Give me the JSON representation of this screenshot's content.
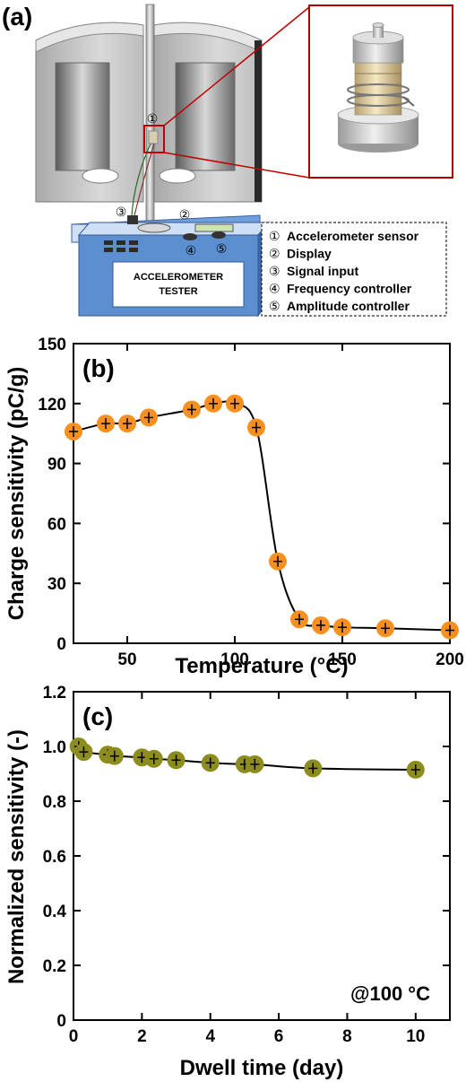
{
  "panel_a": {
    "label": "(a)",
    "tester_label_line1": "ACCELEROMETER",
    "tester_label_line2": "TESTER",
    "callout_numbers": [
      "①",
      "②",
      "③",
      "④",
      "⑤"
    ],
    "legend": [
      {
        "num": "①",
        "text": "Accelerometer sensor"
      },
      {
        "num": "②",
        "text": "Display"
      },
      {
        "num": "③",
        "text": "Signal input"
      },
      {
        "num": "④",
        "text": "Frequency controller"
      },
      {
        "num": "⑤",
        "text": "Amplitude controller"
      }
    ],
    "colors": {
      "furnace": "#c8c8c8",
      "tester_blue": "#5b8fd0",
      "zoom_frame": "#c00000"
    }
  },
  "chart_data": [
    {
      "type": "scatter",
      "panel_label": "(b)",
      "xlabel": "Temperature (°C)",
      "ylabel": "Charge sensitivity (pC/g)",
      "xlim": [
        25,
        200
      ],
      "ylim": [
        0,
        150
      ],
      "xticks": [
        50,
        100,
        150,
        200
      ],
      "yticks": [
        0,
        30,
        60,
        90,
        120,
        150
      ],
      "marker_color": "#f7901e",
      "line": "smooth fit through points",
      "x": [
        25,
        40,
        50,
        60,
        80,
        90,
        100,
        110,
        120,
        130,
        140,
        150,
        170,
        200
      ],
      "y": [
        106,
        110,
        110,
        113,
        117,
        120,
        120,
        108,
        41,
        12,
        9,
        8,
        7.5,
        6.5
      ]
    },
    {
      "type": "scatter",
      "panel_label": "(c)",
      "xlabel": "Dwell time (day)",
      "ylabel": "Normalized sensitivity (-)",
      "xlim": [
        0,
        11
      ],
      "ylim": [
        0,
        1.2
      ],
      "xticks": [
        0,
        2,
        4,
        6,
        8,
        10
      ],
      "yticks": [
        0,
        0.2,
        0.4,
        0.6,
        0.8,
        1.0,
        1.2
      ],
      "ytick_labels": [
        "0",
        "0.2",
        "0.4",
        "0.6",
        "0.8",
        "1.0",
        "1.2"
      ],
      "marker_color": "#8d8d1f",
      "annotation": "@100 °C",
      "x": [
        0.15,
        0.3,
        1,
        1.2,
        2,
        2.35,
        3,
        4,
        5,
        5.3,
        7,
        10
      ],
      "y": [
        1.0,
        0.98,
        0.97,
        0.965,
        0.96,
        0.955,
        0.95,
        0.94,
        0.935,
        0.935,
        0.92,
        0.915
      ]
    }
  ]
}
